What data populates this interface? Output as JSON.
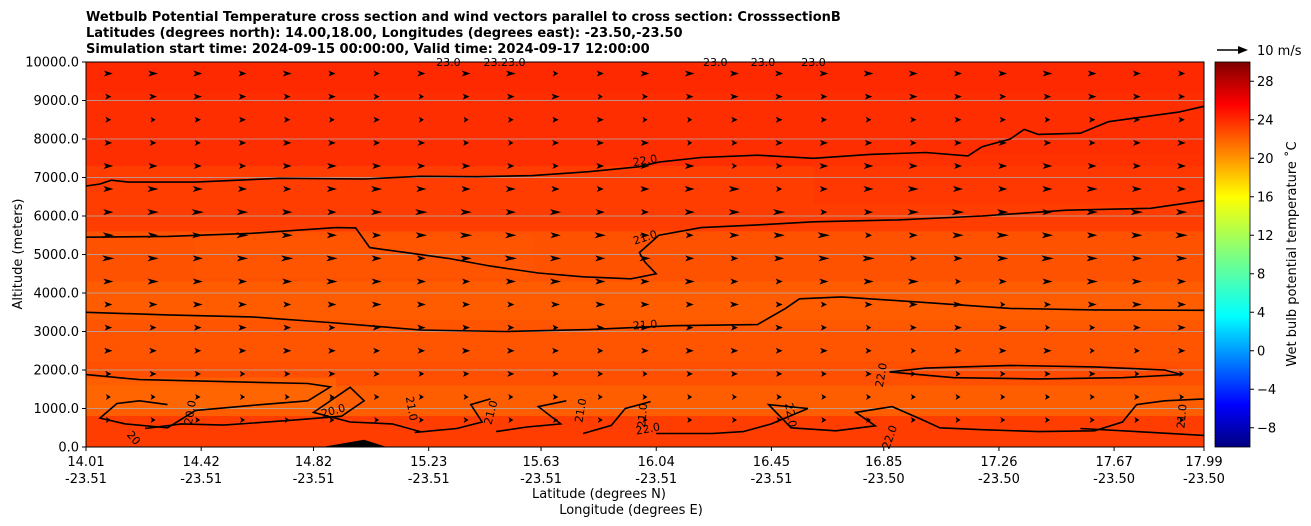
{
  "chart_data": {
    "type": "heatmap",
    "title_lines": [
      "Wetbulb Potential Temperature cross section and wind vectors parallel to cross section: CrosssectionB",
      "Latitudes (degrees north): 14.00,18.00, Longitudes (degrees east): -23.50,-23.50",
      "Simulation start time: 2024-09-15 00:00:00, Valid time: 2024-09-17 12:00:00"
    ],
    "xlabel_lat": "Latitude (degrees N)",
    "xlabel_lon": "Longitude (degrees E)",
    "ylabel": "Altitude (meters)",
    "x_ticks": [
      {
        "lat": "14.01",
        "lon": "-23.51"
      },
      {
        "lat": "14.42",
        "lon": "-23.51"
      },
      {
        "lat": "14.82",
        "lon": "-23.51"
      },
      {
        "lat": "15.23",
        "lon": "-23.51"
      },
      {
        "lat": "15.63",
        "lon": "-23.51"
      },
      {
        "lat": "16.04",
        "lon": "-23.51"
      },
      {
        "lat": "16.45",
        "lon": "-23.51"
      },
      {
        "lat": "16.85",
        "lon": "-23.50"
      },
      {
        "lat": "17.26",
        "lon": "-23.50"
      },
      {
        "lat": "17.67",
        "lon": "-23.50"
      },
      {
        "lat": "17.99",
        "lon": "-23.50"
      }
    ],
    "y_ticks": [
      "0.0",
      "1000.0",
      "2000.0",
      "3000.0",
      "4000.0",
      "5000.0",
      "6000.0",
      "7000.0",
      "8000.0",
      "9000.0",
      "10000.0"
    ],
    "xlim": [
      14.01,
      17.99
    ],
    "ylim": [
      0,
      10000
    ],
    "grid": "horizontal",
    "colorbar": {
      "label": "Wet bulb potential temperature $^\\circ$C",
      "label_text": "Wet bulb potential temperature ˚C",
      "range": [
        -10,
        30
      ],
      "ticks": [
        "-8",
        "-4",
        "0",
        "4",
        "8",
        "12",
        "16",
        "20",
        "24",
        "28"
      ],
      "colormap": "jet"
    },
    "quiver_key": {
      "label": "10 m/s",
      "speed": 10
    },
    "contour_levels": [
      20,
      21,
      22,
      23
    ],
    "contour_labels": [
      {
        "text": "23.0",
        "lat": 15.3,
        "alt": 10000,
        "rot": 0
      },
      {
        "text": "23.23.0",
        "lat": 15.5,
        "alt": 10000,
        "rot": 0
      },
      {
        "text": "23.0",
        "lat": 16.25,
        "alt": 10000,
        "rot": 0
      },
      {
        "text": "23.0",
        "lat": 16.42,
        "alt": 10000,
        "rot": 0
      },
      {
        "text": "23.0",
        "lat": 16.6,
        "alt": 10000,
        "rot": 0
      },
      {
        "text": "22.0",
        "lat": 16.0,
        "alt": 7450,
        "rot": -10
      },
      {
        "text": "21.0",
        "lat": 16.0,
        "alt": 5450,
        "rot": -18
      },
      {
        "text": "21.0",
        "lat": 16.0,
        "alt": 3180,
        "rot": -5
      },
      {
        "text": "22.0",
        "lat": 16.84,
        "alt": 1870,
        "rot": -80
      },
      {
        "text": "20.0",
        "lat": 14.89,
        "alt": 950,
        "rot": -15
      },
      {
        "text": "20.0",
        "lat": 14.38,
        "alt": 900,
        "rot": -80
      },
      {
        "text": "20",
        "lat": 14.18,
        "alt": 240,
        "rot": 50
      },
      {
        "text": "21.0",
        "lat": 15.17,
        "alt": 1000,
        "rot": 80
      },
      {
        "text": "21.0",
        "lat": 15.45,
        "alt": 900,
        "rot": -75
      },
      {
        "text": "21.0",
        "lat": 15.77,
        "alt": 950,
        "rot": -80
      },
      {
        "text": "21.0",
        "lat": 15.99,
        "alt": 820,
        "rot": -85
      },
      {
        "text": "22.0",
        "lat": 16.01,
        "alt": 480,
        "rot": -10
      },
      {
        "text": "22.0",
        "lat": 16.52,
        "alt": 830,
        "rot": 80
      },
      {
        "text": "22.0",
        "lat": 16.87,
        "alt": 260,
        "rot": -70
      },
      {
        "text": "21.0",
        "lat": 17.91,
        "alt": 800,
        "rot": -85
      }
    ],
    "contour_lines": [
      {
        "level": 22,
        "points": [
          [
            14.01,
            6780
          ],
          [
            14.06,
            6830
          ],
          [
            14.1,
            6930
          ],
          [
            14.16,
            6880
          ],
          [
            14.4,
            6880
          ],
          [
            14.7,
            6980
          ],
          [
            15.0,
            6960
          ],
          [
            15.2,
            7030
          ],
          [
            15.4,
            7020
          ],
          [
            15.6,
            7050
          ],
          [
            15.8,
            7150
          ],
          [
            15.98,
            7280
          ],
          [
            16.05,
            7400
          ],
          [
            16.2,
            7520
          ],
          [
            16.4,
            7580
          ],
          [
            16.6,
            7500
          ],
          [
            16.8,
            7600
          ],
          [
            17.0,
            7650
          ],
          [
            17.15,
            7560
          ],
          [
            17.2,
            7800
          ],
          [
            17.3,
            8000
          ],
          [
            17.35,
            8250
          ],
          [
            17.4,
            8120
          ],
          [
            17.55,
            8150
          ],
          [
            17.65,
            8450
          ],
          [
            17.75,
            8550
          ],
          [
            17.9,
            8700
          ],
          [
            17.99,
            8850
          ]
        ]
      },
      {
        "level": 21,
        "points": [
          [
            14.01,
            5450
          ],
          [
            14.3,
            5470
          ],
          [
            14.6,
            5550
          ],
          [
            14.9,
            5700
          ],
          [
            14.97,
            5690
          ],
          [
            15.02,
            5180
          ],
          [
            15.15,
            5050
          ],
          [
            15.3,
            4900
          ],
          [
            15.45,
            4700
          ],
          [
            15.62,
            4520
          ],
          [
            15.78,
            4420
          ],
          [
            15.95,
            4370
          ],
          [
            16.04,
            4500
          ],
          [
            16.0,
            4800
          ],
          [
            15.98,
            5050
          ],
          [
            16.05,
            5500
          ],
          [
            16.2,
            5700
          ],
          [
            16.4,
            5770
          ],
          [
            16.6,
            5850
          ],
          [
            16.9,
            5900
          ],
          [
            17.2,
            6000
          ],
          [
            17.5,
            6150
          ],
          [
            17.8,
            6200
          ],
          [
            17.99,
            6400
          ]
        ]
      },
      {
        "level": 21,
        "points": [
          [
            14.01,
            3500
          ],
          [
            14.3,
            3430
          ],
          [
            14.6,
            3380
          ],
          [
            14.9,
            3220
          ],
          [
            15.2,
            3040
          ],
          [
            15.5,
            3000
          ],
          [
            15.8,
            3050
          ],
          [
            16.1,
            3150
          ],
          [
            16.4,
            3180
          ],
          [
            16.5,
            3600
          ],
          [
            16.55,
            3850
          ],
          [
            16.7,
            3900
          ],
          [
            17.0,
            3750
          ],
          [
            17.3,
            3600
          ],
          [
            17.6,
            3560
          ],
          [
            17.99,
            3550
          ]
        ]
      },
      {
        "level": 22,
        "points": [
          [
            14.01,
            1880
          ],
          [
            14.2,
            1750
          ],
          [
            14.5,
            1700
          ],
          [
            14.8,
            1650
          ],
          [
            14.88,
            1560
          ],
          [
            14.8,
            1200
          ],
          [
            14.6,
            1080
          ],
          [
            14.4,
            950
          ],
          [
            14.3,
            500
          ],
          [
            14.15,
            600
          ],
          [
            14.06,
            750
          ],
          [
            14.12,
            1130
          ],
          [
            14.2,
            1200
          ],
          [
            14.3,
            1100
          ]
        ]
      },
      {
        "level": 22,
        "points": [
          [
            16.87,
            1950
          ],
          [
            17.0,
            2050
          ],
          [
            17.3,
            2120
          ],
          [
            17.6,
            2080
          ],
          [
            17.85,
            2000
          ],
          [
            17.91,
            1880
          ],
          [
            17.7,
            1800
          ],
          [
            17.4,
            1770
          ],
          [
            17.1,
            1800
          ],
          [
            16.87,
            1950
          ]
        ]
      },
      {
        "level": 20,
        "points": [
          [
            14.22,
            480
          ],
          [
            14.35,
            600
          ],
          [
            14.5,
            570
          ],
          [
            14.75,
            700
          ],
          [
            14.92,
            800
          ],
          [
            15.0,
            1200
          ],
          [
            14.95,
            1550
          ],
          [
            14.82,
            900
          ],
          [
            14.95,
            650
          ],
          [
            15.1,
            600
          ],
          [
            15.2,
            400
          ]
        ]
      },
      {
        "level": 21,
        "points": [
          [
            15.18,
            380
          ],
          [
            15.33,
            480
          ],
          [
            15.42,
            650
          ],
          [
            15.38,
            1100
          ],
          [
            15.45,
            1250
          ]
        ]
      },
      {
        "level": 21,
        "points": [
          [
            15.47,
            400
          ],
          [
            15.58,
            520
          ],
          [
            15.7,
            600
          ],
          [
            15.62,
            1050
          ],
          [
            15.72,
            1200
          ]
        ]
      },
      {
        "level": 21,
        "points": [
          [
            15.78,
            350
          ],
          [
            15.88,
            560
          ],
          [
            15.93,
            1000
          ],
          [
            16.02,
            1180
          ]
        ]
      },
      {
        "level": 22,
        "points": [
          [
            16.04,
            350
          ],
          [
            16.24,
            350
          ],
          [
            16.35,
            400
          ],
          [
            16.45,
            600
          ],
          [
            16.58,
            1000
          ],
          [
            16.44,
            1100
          ],
          [
            16.52,
            500
          ],
          [
            16.68,
            420
          ],
          [
            16.82,
            550
          ],
          [
            16.75,
            900
          ],
          [
            16.88,
            1050
          ],
          [
            16.99,
            700
          ],
          [
            17.05,
            500
          ],
          [
            17.2,
            450
          ],
          [
            17.4,
            400
          ],
          [
            17.6,
            420
          ],
          [
            17.7,
            650
          ],
          [
            17.75,
            1100
          ],
          [
            17.85,
            1200
          ],
          [
            17.99,
            1250
          ]
        ]
      },
      {
        "level": 22,
        "points": [
          [
            17.55,
            480
          ],
          [
            17.75,
            400
          ],
          [
            17.99,
            300
          ]
        ]
      }
    ],
    "terrain": [
      {
        "lat": 14.85,
        "alt": 0
      },
      {
        "lat": 14.93,
        "alt": 100
      },
      {
        "lat": 15.0,
        "alt": 190
      },
      {
        "lat": 15.08,
        "alt": 0
      }
    ],
    "wind_rows_alt": [
      700,
      1300,
      1900,
      2500,
      3100,
      3700,
      4300,
      4900,
      5500,
      6100,
      6700,
      7300,
      7900,
      8500,
      9100,
      9700
    ],
    "wind_speed_u": [
      3,
      4,
      5,
      6,
      6,
      7,
      8,
      9,
      9,
      9,
      8,
      7,
      6,
      5,
      6,
      7
    ],
    "wind_speed_col_factor_note_free": [
      0.6,
      0.8,
      1.0,
      1.1,
      1.0,
      0.9,
      1.0,
      1.1,
      1.0,
      0.9,
      1.0,
      1.1,
      1.0,
      0.9,
      0.8,
      1.0,
      1.1,
      1.0,
      0.9,
      1.0,
      0.8,
      0.7,
      0.9,
      1.0,
      1.1
    ]
  }
}
